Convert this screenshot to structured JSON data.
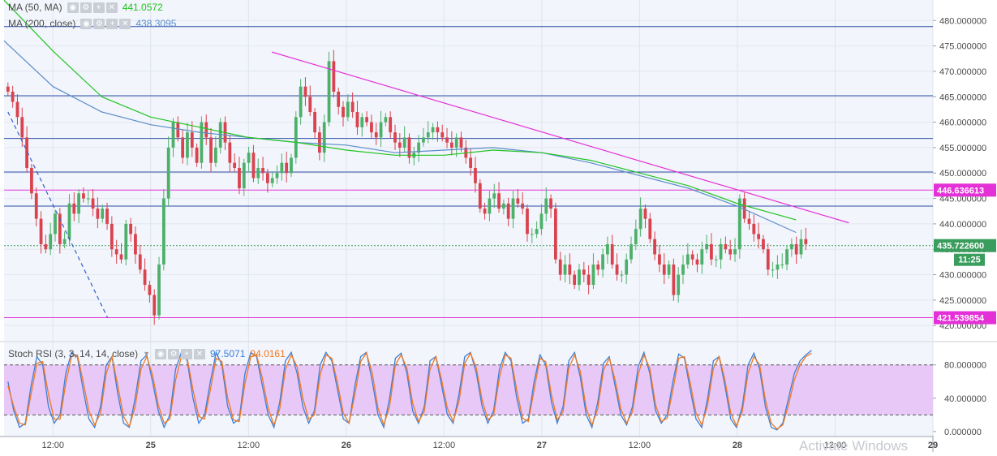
{
  "indicators": {
    "ma50": {
      "label": "MA (50, MA)",
      "value": "441.0572",
      "color": "#22c322"
    },
    "ma200": {
      "label": "MA (200, close)",
      "value": "438.3095",
      "color": "#5b8dc9"
    },
    "stoch": {
      "label": "Stoch RSI (3, 3, 14, 14, close)",
      "k_value": "97.5071",
      "d_value": "94.0161",
      "k_color": "#3d7fd9",
      "d_color": "#f07820"
    }
  },
  "price_tags": {
    "resistance": "446.636613",
    "current": "435.722600",
    "countdown": "11:25",
    "support": "421.539854"
  },
  "watermark": "Activate Windows",
  "colors": {
    "up": "#4db06a",
    "down": "#d9434f",
    "trend": "#e431d7",
    "hline": "#2d4fa8",
    "magenta_line": "#e431d7",
    "current": "#3a9d5d",
    "plot_bg": "#f2f5fb",
    "stoch_band": "#e8c8f7"
  },
  "chart_data": [
    {
      "type": "candlestick",
      "y_axis_ticks": [
        "480.000000",
        "475.000000",
        "470.000000",
        "465.000000",
        "460.000000",
        "455.000000",
        "450.000000",
        "445.000000",
        "440.000000",
        "435.000000",
        "430.000000",
        "425.000000",
        "420.000000"
      ],
      "ylim": [
        417,
        481
      ],
      "x_axis_ticks": [
        "12:00",
        "25",
        "12:00",
        "26",
        "12:00",
        "27",
        "12:00",
        "28",
        "12:00",
        "29"
      ],
      "xlim_days": [
        24.25,
        29.0
      ],
      "x_tick_days": [
        24.5,
        25.0,
        25.5,
        26.0,
        26.5,
        27.0,
        27.5,
        28.0,
        28.5,
        29.0
      ],
      "horizontal_levels_blue": [
        478.8,
        465.2,
        456.8,
        450.2,
        443.5
      ],
      "horizontal_levels_magenta": [
        446.636613,
        421.539854
      ],
      "current_price": 435.7226,
      "trendline": {
        "x": [
          25.62,
          28.57
        ],
        "y": [
          473.8,
          440.2
        ]
      },
      "dashed_line": {
        "x": [
          24.27,
          24.78
        ],
        "y": [
          462.0,
          421.5
        ]
      },
      "ma50_path": {
        "x": [
          24.25,
          24.5,
          24.75,
          25.0,
          25.25,
          25.5,
          25.75,
          26.0,
          26.25,
          26.5,
          26.75,
          27.0,
          27.25,
          27.5,
          27.75,
          28.0,
          28.3
        ],
        "y": [
          484,
          474,
          465,
          461,
          459,
          457,
          456,
          454.5,
          453.5,
          453.5,
          454.5,
          454,
          452.5,
          450,
          447.5,
          444,
          440.8
        ]
      },
      "ma200_path": {
        "x": [
          24.25,
          24.5,
          24.75,
          25.0,
          25.25,
          25.5,
          25.75,
          26.0,
          26.25,
          26.5,
          26.75,
          27.0,
          27.25,
          27.5,
          27.75,
          28.0,
          28.3
        ],
        "y": [
          476,
          467,
          462,
          459.5,
          458,
          457,
          456,
          455.5,
          454,
          454.5,
          455,
          454,
          452,
          449.5,
          447,
          443.5,
          438.3
        ]
      },
      "candles_close": [
        466,
        464,
        461,
        457,
        451,
        446,
        441,
        436,
        435,
        438,
        442,
        436,
        437,
        444,
        442,
        446,
        445,
        445,
        443,
        441,
        443,
        440,
        435,
        434,
        433,
        440,
        438,
        434,
        431,
        428,
        426,
        422,
        432,
        445,
        455,
        460,
        457,
        453,
        458,
        455,
        452,
        460,
        457,
        452,
        455,
        460,
        456,
        452,
        451,
        447,
        452,
        454,
        449,
        451,
        450,
        448,
        449,
        450,
        452,
        450,
        453,
        461,
        467,
        465,
        462,
        458,
        454,
        460,
        472,
        466,
        463,
        461,
        464,
        462,
        459,
        461,
        460,
        458,
        457,
        460,
        461,
        458,
        456,
        455,
        457,
        453,
        454,
        456,
        457,
        458,
        459,
        458,
        457,
        456,
        455,
        457,
        455,
        453,
        451,
        448,
        443,
        442,
        445,
        446,
        443,
        444,
        441,
        445,
        444,
        443,
        438,
        438,
        439,
        442,
        445,
        443,
        433,
        430,
        432,
        430,
        428,
        431,
        430,
        428,
        432,
        431,
        434,
        436,
        432,
        430,
        430,
        433,
        436,
        439,
        443,
        441,
        437,
        434,
        432,
        430,
        432,
        426,
        430,
        432,
        434,
        433,
        432,
        435,
        436,
        433,
        433,
        436,
        435,
        434,
        435,
        445,
        441,
        440,
        438,
        437,
        435,
        431,
        431,
        432,
        432,
        435,
        436,
        434,
        437,
        436
      ]
    },
    {
      "type": "line",
      "title": "Stoch RSI (3, 3, 14, 14, close)",
      "y_axis_ticks": [
        "80.000000",
        "40.000000",
        "0.000000"
      ],
      "ylim": [
        -5,
        107
      ],
      "bands": [
        80,
        20
      ],
      "series": [
        {
          "name": "%K",
          "color": "#3d7fd9",
          "values": [
            60,
            25,
            5,
            10,
            55,
            90,
            80,
            30,
            10,
            20,
            70,
            95,
            90,
            50,
            15,
            5,
            30,
            80,
            90,
            45,
            10,
            5,
            40,
            85,
            92,
            60,
            25,
            5,
            20,
            75,
            95,
            85,
            40,
            10,
            20,
            60,
            95,
            80,
            30,
            10,
            15,
            70,
            95,
            90,
            55,
            20,
            5,
            35,
            85,
            95,
            70,
            30,
            10,
            25,
            80,
            95,
            85,
            50,
            15,
            10,
            55,
            90,
            95,
            60,
            20,
            5,
            40,
            88,
            94,
            70,
            25,
            10,
            30,
            85,
            90,
            55,
            20,
            10,
            45,
            90,
            95,
            70,
            30,
            10,
            25,
            75,
            95,
            85,
            40,
            10,
            15,
            60,
            92,
            80,
            35,
            10,
            30,
            85,
            95,
            65,
            20,
            5,
            35,
            82,
            90,
            55,
            20,
            8,
            30,
            78,
            95,
            70,
            25,
            10,
            20,
            60,
            93,
            88,
            50,
            15,
            5,
            40,
            85,
            90,
            55,
            15,
            5,
            30,
            80,
            94,
            75,
            30,
            5,
            2,
            10,
            40,
            70,
            85,
            92,
            97.5
          ]
        },
        {
          "name": "%D",
          "color": "#f07820",
          "values": [
            55,
            30,
            10,
            8,
            45,
            82,
            84,
            45,
            15,
            15,
            58,
            90,
            92,
            60,
            25,
            8,
            22,
            70,
            90,
            55,
            18,
            6,
            30,
            75,
            90,
            68,
            32,
            10,
            15,
            62,
            90,
            88,
            50,
            18,
            15,
            50,
            88,
            84,
            40,
            14,
            12,
            58,
            90,
            92,
            64,
            28,
            8,
            27,
            75,
            92,
            78,
            40,
            15,
            20,
            68,
            92,
            88,
            58,
            22,
            10,
            45,
            84,
            94,
            70,
            28,
            8,
            30,
            80,
            92,
            76,
            34,
            12,
            24,
            75,
            90,
            62,
            28,
            12,
            36,
            82,
            94,
            76,
            38,
            14,
            20,
            65,
            92,
            88,
            50,
            16,
            12,
            50,
            88,
            84,
            44,
            14,
            24,
            76,
            92,
            72,
            28,
            8,
            27,
            74,
            88,
            62,
            27,
            10,
            24,
            68,
            92,
            76,
            32,
            12,
            16,
            50,
            88,
            90,
            58,
            22,
            8,
            32,
            76,
            90,
            62,
            22,
            7,
            24,
            70,
            90,
            80,
            38,
            10,
            3,
            8,
            32,
            62,
            80,
            90,
            94.0161
          ]
        }
      ]
    }
  ]
}
